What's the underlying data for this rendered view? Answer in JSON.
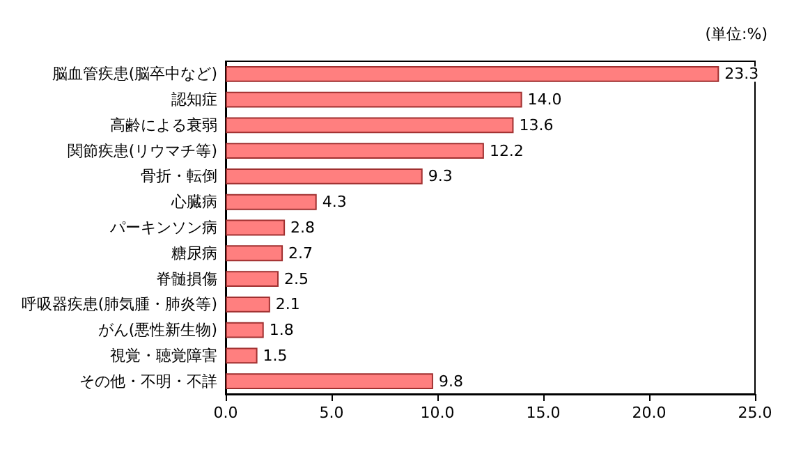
{
  "chart_data": {
    "type": "bar",
    "orientation": "horizontal",
    "categories": [
      "脳血管疾患(脳卒中など)",
      "認知症",
      "高齢による衰弱",
      "関節疾患(リウマチ等)",
      "骨折・転倒",
      "心臓病",
      "パーキンソン病",
      "糖尿病",
      "脊髄損傷",
      "呼吸器疾患(肺気腫・肺炎等)",
      "がん(悪性新生物)",
      "視覚・聴覚障害",
      "その他・不明・不詳"
    ],
    "values": [
      23.3,
      14.0,
      13.6,
      12.2,
      9.3,
      4.3,
      2.8,
      2.7,
      2.5,
      2.1,
      1.8,
      1.5,
      9.8
    ],
    "value_labels": [
      "23.3",
      "14.0",
      "13.6",
      "12.2",
      "9.3",
      "4.3",
      "2.8",
      "2.7",
      "2.5",
      "2.1",
      "1.8",
      "1.5",
      "9.8"
    ],
    "color": "#ff7f7f",
    "xlim": [
      0,
      25
    ],
    "xticks": [
      {
        "value": 0,
        "label": "0.0"
      },
      {
        "value": 5,
        "label": "5.0"
      },
      {
        "value": 10,
        "label": "10.0"
      },
      {
        "value": 15,
        "label": "15.0"
      },
      {
        "value": 20,
        "label": "20.0"
      },
      {
        "value": 25,
        "label": "25.0"
      }
    ],
    "annotations": [
      "(単位:%)"
    ],
    "grid": false
  }
}
